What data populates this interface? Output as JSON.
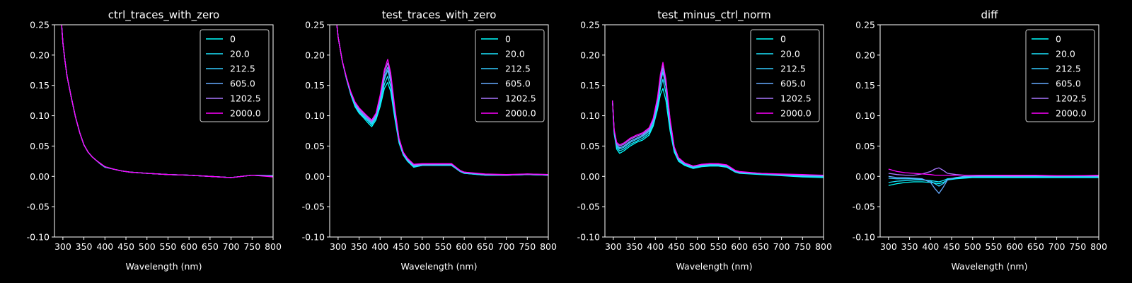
{
  "background": "#000000",
  "foreground": "#ffffff",
  "x_ticks": [
    300,
    350,
    400,
    450,
    500,
    550,
    600,
    650,
    700,
    750,
    800
  ],
  "y_ticks": [
    -0.1,
    -0.05,
    0.0,
    0.05,
    0.1,
    0.15,
    0.2,
    0.25
  ],
  "legend": {
    "entries": [
      "0",
      "20.0",
      "212.5",
      "605.0",
      "1202.5",
      "2000.0"
    ],
    "colors": [
      "#00ffff",
      "#1ae5ff",
      "#33ccff",
      "#66aaff",
      "#aa77ff",
      "#ff00ff"
    ],
    "placement": "upper right"
  },
  "chart_data": [
    {
      "type": "line",
      "title": "ctrl_traces_with_zero",
      "xlabel": "Wavelength (nm)",
      "ylabel": "",
      "xlim": [
        280,
        800
      ],
      "ylim": [
        -0.1,
        0.25
      ],
      "x": [
        297,
        300,
        305,
        310,
        320,
        330,
        340,
        350,
        360,
        370,
        380,
        390,
        400,
        420,
        440,
        460,
        480,
        500,
        550,
        600,
        650,
        700,
        750,
        800
      ],
      "series": [
        {
          "name": "0",
          "values": [
            0.25,
            0.22,
            0.19,
            0.165,
            0.13,
            0.098,
            0.072,
            0.052,
            0.04,
            0.032,
            0.026,
            0.02,
            0.015,
            0.012,
            0.009,
            0.007,
            0.006,
            0.005,
            0.003,
            0.002,
            0.0,
            -0.002,
            0.002,
            0.0
          ]
        },
        {
          "name": "20.0",
          "values": [
            0.25,
            0.22,
            0.19,
            0.165,
            0.13,
            0.098,
            0.072,
            0.052,
            0.04,
            0.032,
            0.026,
            0.02,
            0.015,
            0.012,
            0.009,
            0.007,
            0.006,
            0.005,
            0.003,
            0.002,
            0.0,
            -0.002,
            0.002,
            0.001
          ]
        },
        {
          "name": "212.5",
          "values": [
            0.25,
            0.22,
            0.19,
            0.165,
            0.13,
            0.098,
            0.072,
            0.052,
            0.04,
            0.032,
            0.026,
            0.02,
            0.016,
            0.012,
            0.009,
            0.007,
            0.006,
            0.005,
            0.003,
            0.002,
            0.0,
            -0.002,
            0.002,
            0.001
          ]
        },
        {
          "name": "605.0",
          "values": [
            0.25,
            0.22,
            0.19,
            0.165,
            0.13,
            0.098,
            0.072,
            0.052,
            0.04,
            0.032,
            0.026,
            0.02,
            0.016,
            0.012,
            0.009,
            0.007,
            0.006,
            0.005,
            0.003,
            0.002,
            0.0,
            -0.002,
            0.002,
            0.001
          ]
        },
        {
          "name": "1202.5",
          "values": [
            0.25,
            0.22,
            0.19,
            0.165,
            0.13,
            0.098,
            0.072,
            0.052,
            0.04,
            0.032,
            0.026,
            0.021,
            0.016,
            0.012,
            0.009,
            0.007,
            0.006,
            0.005,
            0.003,
            0.002,
            0.0,
            -0.002,
            0.002,
            0.0
          ]
        },
        {
          "name": "2000.0",
          "values": [
            0.25,
            0.22,
            0.19,
            0.165,
            0.13,
            0.098,
            0.072,
            0.052,
            0.04,
            0.032,
            0.026,
            0.021,
            0.016,
            0.012,
            0.009,
            0.007,
            0.006,
            0.005,
            0.003,
            0.002,
            0.0,
            -0.002,
            0.002,
            -0.001
          ]
        }
      ]
    },
    {
      "type": "line",
      "title": "test_traces_with_zero",
      "xlabel": "Wavelength (nm)",
      "ylabel": "",
      "xlim": [
        280,
        800
      ],
      "ylim": [
        -0.1,
        0.25
      ],
      "x": [
        297,
        300,
        310,
        320,
        330,
        340,
        350,
        360,
        370,
        380,
        390,
        400,
        410,
        418,
        425,
        435,
        445,
        455,
        465,
        480,
        500,
        520,
        550,
        570,
        590,
        600,
        650,
        700,
        750,
        800
      ],
      "series": [
        {
          "name": "0",
          "values": [
            0.25,
            0.23,
            0.19,
            0.16,
            0.135,
            0.115,
            0.104,
            0.097,
            0.089,
            0.082,
            0.093,
            0.115,
            0.145,
            0.155,
            0.14,
            0.095,
            0.055,
            0.035,
            0.025,
            0.015,
            0.018,
            0.018,
            0.018,
            0.018,
            0.008,
            0.005,
            0.002,
            0.002,
            0.003,
            0.002
          ]
        },
        {
          "name": "20.0",
          "values": [
            0.25,
            0.23,
            0.19,
            0.16,
            0.136,
            0.117,
            0.106,
            0.099,
            0.092,
            0.085,
            0.096,
            0.12,
            0.152,
            0.165,
            0.148,
            0.1,
            0.057,
            0.036,
            0.026,
            0.016,
            0.018,
            0.018,
            0.018,
            0.018,
            0.008,
            0.005,
            0.002,
            0.002,
            0.003,
            0.002
          ]
        },
        {
          "name": "212.5",
          "values": [
            0.25,
            0.23,
            0.19,
            0.161,
            0.137,
            0.119,
            0.108,
            0.101,
            0.094,
            0.087,
            0.099,
            0.125,
            0.16,
            0.175,
            0.156,
            0.104,
            0.059,
            0.037,
            0.027,
            0.017,
            0.019,
            0.019,
            0.019,
            0.019,
            0.009,
            0.006,
            0.003,
            0.002,
            0.003,
            0.002
          ]
        },
        {
          "name": "605.0",
          "values": [
            0.25,
            0.23,
            0.19,
            0.162,
            0.138,
            0.12,
            0.109,
            0.102,
            0.095,
            0.089,
            0.1,
            0.128,
            0.165,
            0.18,
            0.16,
            0.107,
            0.06,
            0.038,
            0.028,
            0.018,
            0.019,
            0.019,
            0.02,
            0.02,
            0.009,
            0.006,
            0.003,
            0.002,
            0.003,
            0.002
          ]
        },
        {
          "name": "1202.5",
          "values": [
            0.25,
            0.23,
            0.19,
            0.162,
            0.139,
            0.122,
            0.111,
            0.104,
            0.097,
            0.091,
            0.102,
            0.131,
            0.171,
            0.187,
            0.166,
            0.11,
            0.062,
            0.039,
            0.029,
            0.019,
            0.02,
            0.02,
            0.02,
            0.02,
            0.01,
            0.007,
            0.003,
            0.002,
            0.004,
            0.003
          ]
        },
        {
          "name": "2000.0",
          "values": [
            0.25,
            0.23,
            0.19,
            0.163,
            0.14,
            0.123,
            0.113,
            0.106,
            0.099,
            0.093,
            0.104,
            0.134,
            0.176,
            0.193,
            0.171,
            0.113,
            0.063,
            0.04,
            0.03,
            0.02,
            0.021,
            0.021,
            0.021,
            0.021,
            0.01,
            0.007,
            0.004,
            0.003,
            0.004,
            0.003
          ]
        }
      ]
    },
    {
      "type": "line",
      "title": "test_minus_ctrl_norm",
      "xlabel": "Wavelength (nm)",
      "ylabel": "",
      "xlim": [
        280,
        800
      ],
      "ylim": [
        -0.1,
        0.25
      ],
      "x": [
        298,
        302,
        308,
        315,
        325,
        340,
        355,
        370,
        385,
        395,
        405,
        412,
        418,
        425,
        435,
        445,
        455,
        470,
        490,
        510,
        530,
        550,
        570,
        590,
        600,
        650,
        700,
        750,
        800
      ],
      "series": [
        {
          "name": "0",
          "values": [
            0.125,
            0.07,
            0.045,
            0.038,
            0.042,
            0.05,
            0.056,
            0.06,
            0.068,
            0.083,
            0.11,
            0.135,
            0.145,
            0.125,
            0.075,
            0.04,
            0.025,
            0.018,
            0.013,
            0.016,
            0.017,
            0.017,
            0.015,
            0.007,
            0.005,
            0.003,
            0.001,
            -0.001,
            -0.002
          ]
        },
        {
          "name": "20.0",
          "values": [
            0.125,
            0.072,
            0.048,
            0.042,
            0.045,
            0.053,
            0.058,
            0.063,
            0.071,
            0.086,
            0.115,
            0.145,
            0.16,
            0.138,
            0.082,
            0.043,
            0.026,
            0.019,
            0.014,
            0.017,
            0.018,
            0.018,
            0.016,
            0.008,
            0.006,
            0.004,
            0.002,
            0.0,
            -0.001
          ]
        },
        {
          "name": "212.5",
          "values": [
            0.125,
            0.074,
            0.05,
            0.045,
            0.048,
            0.056,
            0.061,
            0.066,
            0.074,
            0.09,
            0.12,
            0.153,
            0.172,
            0.148,
            0.088,
            0.046,
            0.028,
            0.02,
            0.015,
            0.018,
            0.019,
            0.019,
            0.017,
            0.008,
            0.006,
            0.004,
            0.002,
            0.001,
            0.0
          ]
        },
        {
          "name": "605.0",
          "values": [
            0.125,
            0.075,
            0.052,
            0.047,
            0.05,
            0.058,
            0.063,
            0.068,
            0.076,
            0.092,
            0.123,
            0.158,
            0.178,
            0.152,
            0.09,
            0.047,
            0.029,
            0.021,
            0.016,
            0.019,
            0.02,
            0.02,
            0.018,
            0.009,
            0.007,
            0.005,
            0.003,
            0.002,
            0.001
          ]
        },
        {
          "name": "1202.5",
          "values": [
            0.125,
            0.076,
            0.054,
            0.05,
            0.053,
            0.061,
            0.066,
            0.07,
            0.078,
            0.094,
            0.127,
            0.164,
            0.184,
            0.157,
            0.093,
            0.048,
            0.03,
            0.022,
            0.017,
            0.019,
            0.021,
            0.02,
            0.018,
            0.009,
            0.007,
            0.005,
            0.003,
            0.002,
            0.002
          ]
        },
        {
          "name": "2000.0",
          "values": [
            0.125,
            0.077,
            0.056,
            0.052,
            0.055,
            0.063,
            0.068,
            0.072,
            0.08,
            0.096,
            0.13,
            0.168,
            0.188,
            0.16,
            0.095,
            0.049,
            0.031,
            0.022,
            0.017,
            0.02,
            0.021,
            0.021,
            0.019,
            0.01,
            0.008,
            0.005,
            0.004,
            0.003,
            0.002
          ]
        }
      ]
    },
    {
      "type": "line",
      "title": "diff",
      "xlabel": "Wavelength (nm)",
      "ylabel": "",
      "xlim": [
        280,
        800
      ],
      "ylim": [
        -0.1,
        0.25
      ],
      "x": [
        300,
        320,
        340,
        360,
        380,
        400,
        410,
        420,
        430,
        440,
        460,
        480,
        500,
        550,
        600,
        650,
        700,
        750,
        800
      ],
      "series": [
        {
          "name": "0",
          "values": [
            -0.015,
            -0.012,
            -0.01,
            -0.009,
            -0.009,
            -0.01,
            -0.011,
            -0.012,
            -0.01,
            -0.006,
            -0.004,
            -0.003,
            -0.002,
            -0.002,
            -0.002,
            -0.002,
            -0.002,
            -0.002,
            -0.002
          ]
        },
        {
          "name": "20.0",
          "values": [
            -0.01,
            -0.008,
            -0.007,
            -0.006,
            -0.006,
            -0.007,
            -0.008,
            -0.009,
            -0.007,
            -0.004,
            -0.003,
            -0.002,
            -0.001,
            -0.001,
            -0.001,
            -0.001,
            -0.001,
            -0.001,
            -0.001
          ]
        },
        {
          "name": "212.5",
          "values": [
            -0.003,
            -0.004,
            -0.004,
            -0.004,
            -0.005,
            -0.008,
            -0.012,
            -0.016,
            -0.012,
            -0.005,
            -0.002,
            -0.001,
            0.0,
            0.0,
            0.0,
            0.0,
            0.0,
            0.0,
            0.0
          ]
        },
        {
          "name": "605.0",
          "values": [
            0.0,
            -0.002,
            -0.002,
            -0.003,
            -0.004,
            -0.01,
            -0.02,
            -0.028,
            -0.018,
            -0.006,
            -0.002,
            0.0,
            0.0,
            0.001,
            0.0,
            0.001,
            0.0,
            0.001,
            0.0
          ]
        },
        {
          "name": "1202.5",
          "values": [
            0.005,
            0.003,
            0.002,
            0.002,
            0.004,
            0.008,
            0.012,
            0.014,
            0.01,
            0.005,
            0.003,
            0.002,
            0.002,
            0.001,
            0.001,
            0.001,
            0.001,
            0.001,
            0.001
          ]
        },
        {
          "name": "2000.0",
          "values": [
            0.012,
            0.008,
            0.006,
            0.005,
            0.004,
            0.003,
            0.002,
            0.002,
            0.002,
            0.002,
            0.002,
            0.002,
            0.002,
            0.002,
            0.002,
            0.002,
            0.001,
            0.001,
            0.002
          ]
        }
      ]
    }
  ]
}
